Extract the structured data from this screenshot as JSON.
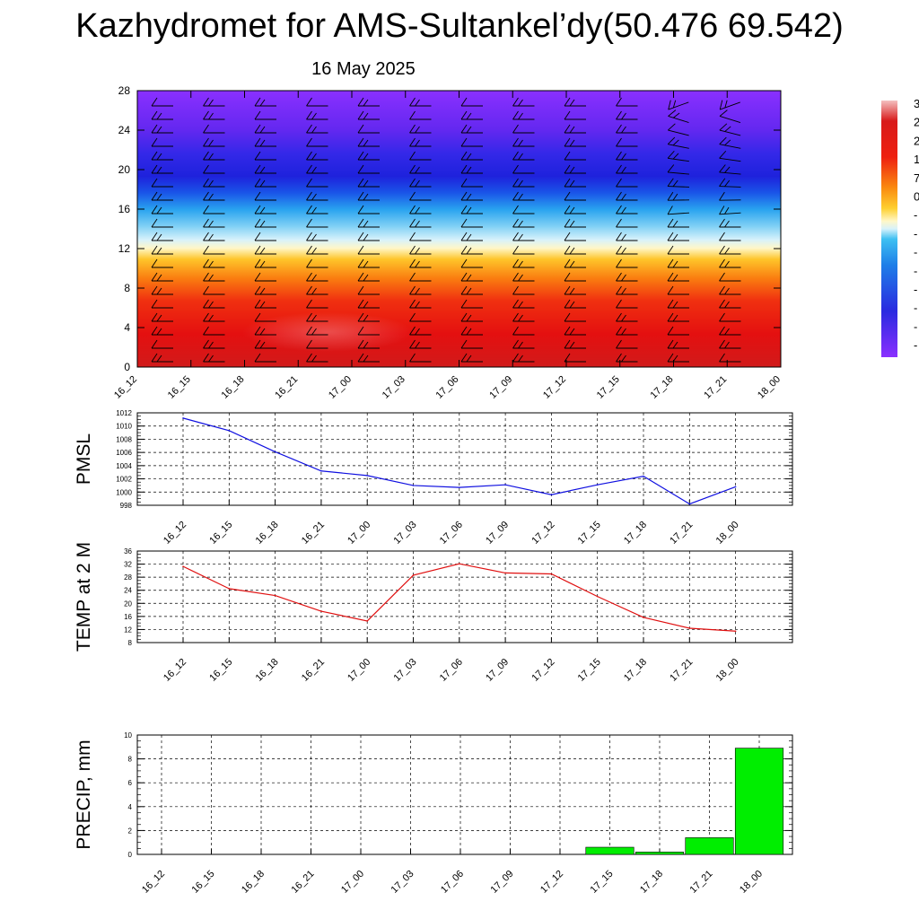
{
  "page": {
    "title": "Kazhydromet for AMS-Sultankel’dy(50.476 69.542)",
    "subtitle": "16 May 2025"
  },
  "colors": {
    "pmsl_line": "#1010e0",
    "temp_line": "#e01010",
    "precip_bar": "#00ee00",
    "barb": "#000000",
    "grid": "#000000"
  },
  "chart_data": [
    {
      "id": "cross-section",
      "type": "heatmap",
      "title": "",
      "xlabel": "",
      "ylabel": "",
      "x_ticks": [
        "16_12",
        "16_15",
        "16_18",
        "16_21",
        "17_00",
        "17_03",
        "17_06",
        "17_09",
        "17_12",
        "17_15",
        "17_18",
        "17_21",
        "18_00"
      ],
      "y_ticks": [
        0,
        4,
        8,
        12,
        16,
        20,
        24,
        28
      ],
      "ylim": [
        0,
        28
      ],
      "grid": false,
      "overlay": "wind barbs",
      "colorbar_labels_visible": [
        "3",
        "2",
        "2",
        "1",
        "7",
        "0",
        "-",
        "-",
        "-",
        "-",
        "-",
        "-",
        "-",
        "-"
      ]
    },
    {
      "id": "pmsl",
      "type": "line",
      "ylabel": "PMSL",
      "ylim": [
        998,
        1012
      ],
      "y_ticks": [
        998,
        1000,
        1002,
        1004,
        1006,
        1008,
        1010,
        1012
      ],
      "categories": [
        "16_12",
        "16_15",
        "16_18",
        "16_21",
        "17_00",
        "17_03",
        "17_06",
        "17_09",
        "17_12",
        "17_15",
        "17_18",
        "17_21",
        "18_00"
      ],
      "values": [
        1011.2,
        1009.3,
        1006.1,
        1003.2,
        1002.5,
        1001.0,
        1000.7,
        1001.1,
        999.6,
        1001.1,
        1002.4,
        998.2,
        1000.8
      ],
      "grid": true
    },
    {
      "id": "temp",
      "type": "line",
      "ylabel": "TEMP at 2 M",
      "ylim": [
        8,
        36
      ],
      "y_ticks": [
        8,
        12,
        16,
        20,
        24,
        28,
        32,
        36
      ],
      "categories": [
        "16_12",
        "16_15",
        "16_18",
        "16_21",
        "17_00",
        "17_03",
        "17_06",
        "17_09",
        "17_12",
        "17_15",
        "17_18",
        "17_21",
        "18_00"
      ],
      "values": [
        31.3,
        24.5,
        22.4,
        17.6,
        14.6,
        28.6,
        32.1,
        29.3,
        29.0,
        22.1,
        15.7,
        12.4,
        11.5
      ],
      "grid": true
    },
    {
      "id": "precip",
      "type": "bar",
      "ylabel": "PRECIP, mm",
      "ylim": [
        0,
        10
      ],
      "y_ticks": [
        0,
        2,
        4,
        6,
        8,
        10
      ],
      "categories": [
        "16_12",
        "16_15",
        "16_18",
        "16_21",
        "17_00",
        "17_03",
        "17_06",
        "17_09",
        "17_12",
        "17_15",
        "17_18",
        "17_21",
        "18_00"
      ],
      "values": [
        0,
        0,
        0,
        0,
        0,
        0,
        0,
        0,
        0,
        0.6,
        0.2,
        1.4,
        8.9
      ],
      "grid": true
    }
  ]
}
